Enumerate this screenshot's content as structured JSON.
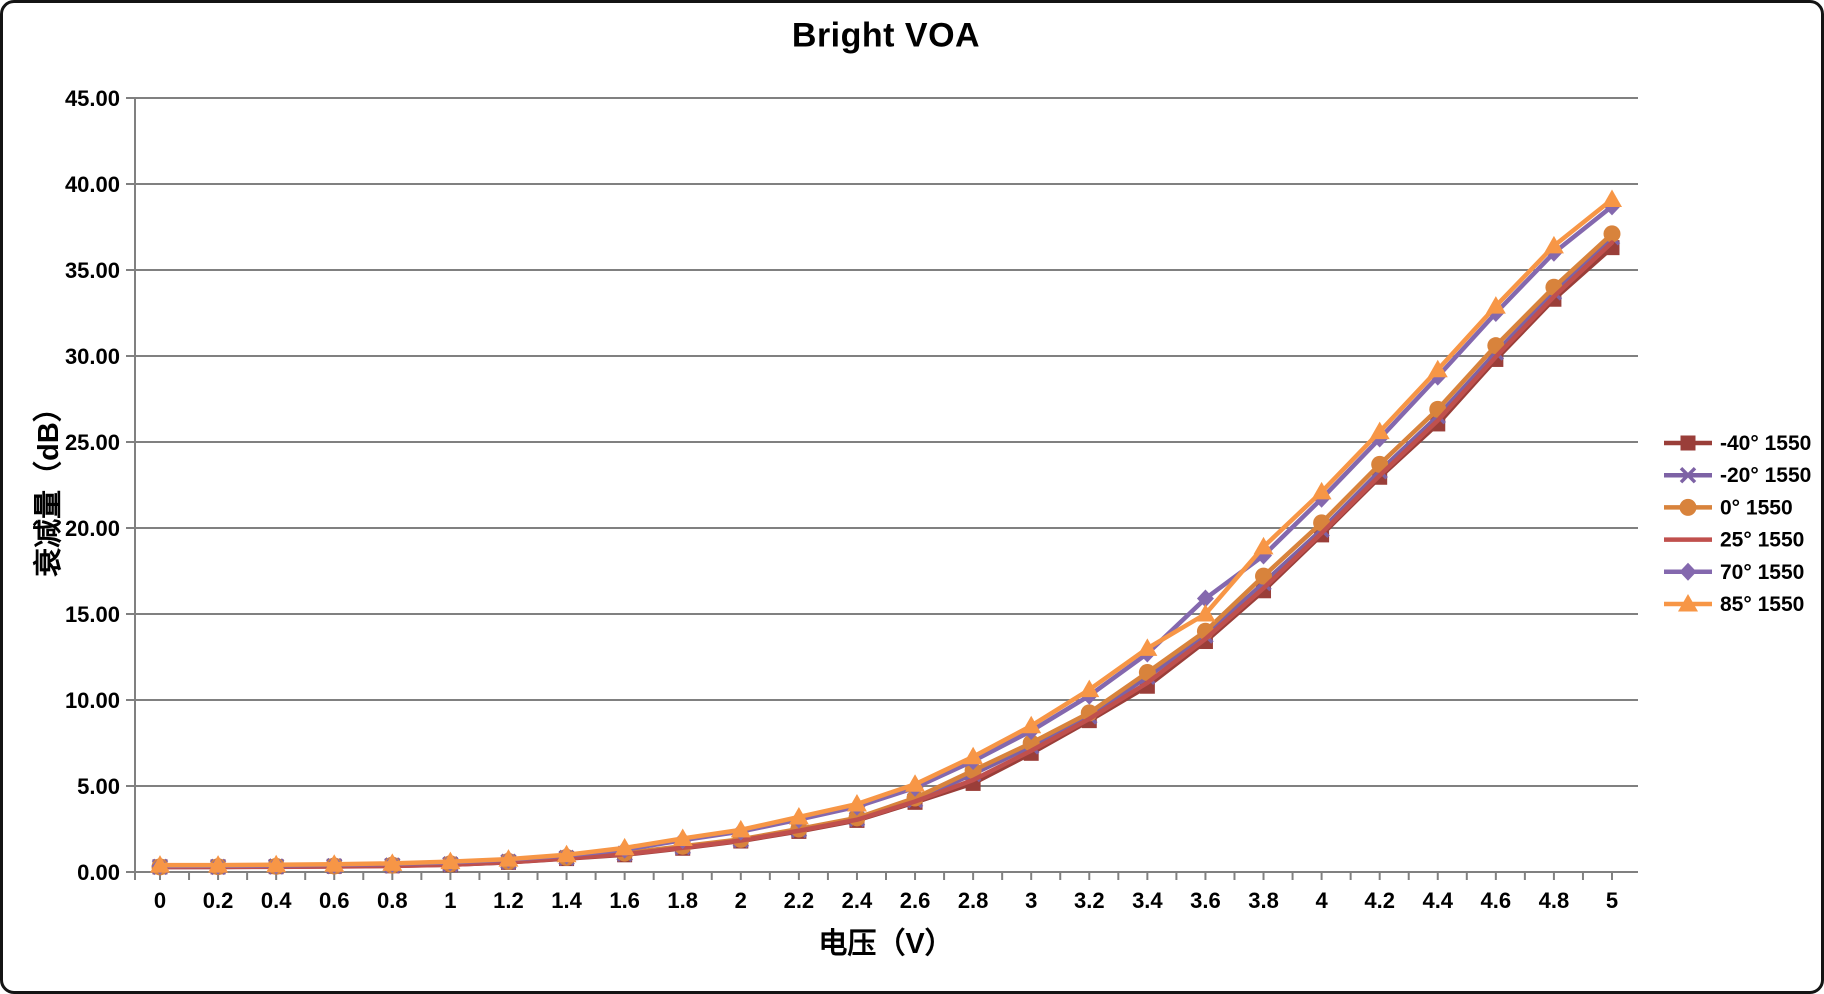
{
  "chart_data": {
    "type": "line",
    "title": "Bright VOA",
    "xlabel": "电压（V）",
    "ylabel": "衰减量（dB）",
    "xlim": [
      0,
      5
    ],
    "ylim": [
      0,
      45
    ],
    "grid": true,
    "legend_position": "right",
    "gridline_color": "#808080",
    "axis_color": "#808080",
    "text_color": "#000000",
    "y_tick_labels": [
      "0.00",
      "5.00",
      "10.00",
      "15.00",
      "20.00",
      "25.00",
      "30.00",
      "35.00",
      "40.00",
      "45.00"
    ],
    "x_tick_labels": [
      "0",
      "0.2",
      "0.4",
      "0.6",
      "0.8",
      "1",
      "1.2",
      "1.4",
      "1.6",
      "1.8",
      "2",
      "2.2",
      "2.4",
      "2.6",
      "2.8",
      "3",
      "3.2",
      "3.4",
      "3.6",
      "3.8",
      "4",
      "4.2",
      "4.4",
      "4.6",
      "4.8",
      "5"
    ],
    "x": [
      0,
      0.2,
      0.4,
      0.6,
      0.8,
      1,
      1.2,
      1.4,
      1.6,
      1.8,
      2,
      2.2,
      2.4,
      2.6,
      2.8,
      3,
      3.2,
      3.4,
      3.6,
      3.8,
      4,
      4.2,
      4.4,
      4.6,
      4.8,
      5
    ],
    "series": [
      {
        "name": "-40° 1550",
        "color": "#9A3E39",
        "marker": "square",
        "values": [
          0.3,
          0.3,
          0.31,
          0.33,
          0.36,
          0.42,
          0.56,
          0.78,
          1.0,
          1.38,
          1.8,
          2.36,
          3.0,
          4.05,
          5.15,
          6.9,
          8.8,
          10.8,
          13.4,
          16.35,
          19.6,
          22.95,
          26.05,
          29.8,
          33.3,
          36.3
        ]
      },
      {
        "name": "-20° 1550",
        "color": "#7D62A5",
        "marker": "x",
        "values": [
          0.3,
          0.3,
          0.32,
          0.34,
          0.38,
          0.45,
          0.6,
          0.82,
          1.06,
          1.45,
          1.86,
          2.44,
          3.08,
          4.18,
          5.7,
          7.3,
          9.05,
          11.35,
          13.75,
          16.8,
          19.9,
          23.3,
          26.5,
          30.2,
          33.7,
          36.9
        ]
      },
      {
        "name": "0° 1550",
        "color": "#D8833C",
        "marker": "circle",
        "values": [
          0.3,
          0.31,
          0.33,
          0.35,
          0.4,
          0.48,
          0.62,
          0.85,
          1.1,
          1.5,
          1.9,
          2.5,
          3.15,
          4.3,
          5.9,
          7.5,
          9.25,
          11.6,
          14.0,
          17.2,
          20.3,
          23.7,
          26.9,
          30.6,
          34.0,
          37.1
        ]
      },
      {
        "name": "25° 1550",
        "color": "#C0504D",
        "marker": "none",
        "values": [
          0.28,
          0.29,
          0.3,
          0.32,
          0.35,
          0.42,
          0.57,
          0.79,
          1.03,
          1.41,
          1.83,
          2.4,
          3.04,
          4.1,
          5.35,
          7.05,
          8.9,
          11.0,
          13.55,
          16.5,
          19.7,
          23.05,
          26.25,
          29.95,
          33.45,
          36.6
        ]
      },
      {
        "name": "70° 1550",
        "color": "#8468AE",
        "marker": "diamond",
        "values": [
          0.35,
          0.36,
          0.38,
          0.42,
          0.47,
          0.56,
          0.72,
          0.96,
          1.3,
          1.85,
          2.35,
          3.05,
          3.8,
          4.9,
          6.45,
          8.2,
          10.25,
          12.7,
          15.9,
          18.4,
          21.7,
          25.2,
          28.8,
          32.5,
          36.0,
          38.7
        ]
      },
      {
        "name": "85° 1550",
        "color": "#F79646",
        "marker": "triangle",
        "values": [
          0.4,
          0.4,
          0.42,
          0.45,
          0.5,
          0.6,
          0.75,
          1.0,
          1.4,
          1.95,
          2.45,
          3.2,
          3.95,
          5.1,
          6.7,
          8.5,
          10.6,
          13.0,
          15.0,
          18.9,
          22.1,
          25.6,
          29.2,
          32.9,
          36.4,
          39.1
        ]
      }
    ]
  }
}
